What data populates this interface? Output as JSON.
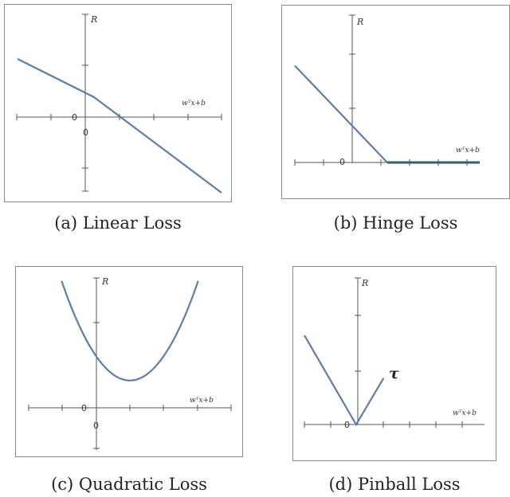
{
  "chart_data": [
    {
      "id": "a",
      "type": "line",
      "caption": "(a) Linear Loss",
      "ylabel": "R",
      "xlabel": "wᵀx+b",
      "zero_labels": [
        "0",
        "0"
      ],
      "series": [
        {
          "x": [
            -3,
            0,
            1,
            5
          ],
          "y": [
            3,
            1,
            0,
            -4
          ]
        }
      ],
      "xlim": [
        -3,
        5
      ],
      "ylim": [
        -4,
        4
      ]
    },
    {
      "id": "b",
      "type": "line",
      "caption": "(b) Hinge Loss",
      "ylabel": "R",
      "xlabel": "wᵀx+b",
      "zero_labels": [
        "0"
      ],
      "series": [
        {
          "x": [
            -3,
            1,
            5
          ],
          "y": [
            4,
            0,
            0
          ]
        }
      ],
      "xlim": [
        -3,
        5
      ],
      "ylim": [
        0,
        5.5
      ]
    },
    {
      "id": "c",
      "type": "line",
      "caption": "(c) Quadratic Loss",
      "ylabel": "R",
      "xlabel": "wᵀx+b",
      "zero_labels": [
        "0",
        "0"
      ],
      "series": [
        {
          "x": [
            -1.7,
            -1,
            0,
            1,
            2,
            3,
            3.7
          ],
          "y": [
            7.29,
            4,
            1,
            0,
            1,
            4,
            7.29
          ]
        }
      ],
      "xlim": [
        -3,
        5
      ],
      "ylim": [
        -2,
        7.5
      ]
    },
    {
      "id": "d",
      "type": "line",
      "caption": "(d) Pinball Loss",
      "ylabel": "R",
      "xlabel": "wᵀx+b",
      "zero_labels": [
        "0"
      ],
      "annotation": "τ",
      "series": [
        {
          "x": [
            -2.2,
            1,
            2.7
          ],
          "y": [
            4.8,
            0,
            2.5
          ]
        }
      ],
      "xlim": [
        -2.2,
        5
      ],
      "ylim": [
        0,
        6
      ]
    }
  ]
}
